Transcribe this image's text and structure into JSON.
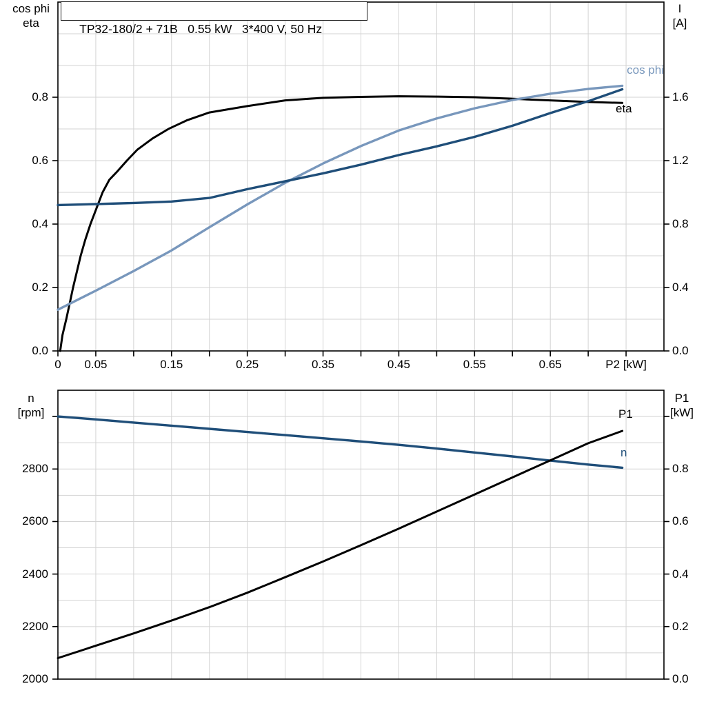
{
  "colors": {
    "black": "#000000",
    "dark_blue": "#1f4e79",
    "light_blue": "#7897bc",
    "grid": "#d3d3d3",
    "frame": "#000000"
  },
  "chart_data": [
    {
      "type": "line",
      "title": "TP32-180/2 + 71B   0.55 kW   3*400 V, 50 Hz",
      "xlabel": "P2 [kW]",
      "x_label_at": 0.75,
      "ylabel_left": [
        "cos phi",
        "eta"
      ],
      "ylabel_right": [
        "I",
        "[A]"
      ],
      "xlim": [
        0,
        0.8
      ],
      "ylim_left": [
        0,
        1.1
      ],
      "ylim_right": [
        0,
        2.2
      ],
      "grid": {
        "x_step": 0.05,
        "y_left_step": 0.1
      },
      "x_ticks": {
        "values": [
          0,
          0.05,
          0.1,
          0.15,
          0.2,
          0.25,
          0.3,
          0.35,
          0.4,
          0.45,
          0.5,
          0.55,
          0.6,
          0.65,
          0.7,
          0.75
        ],
        "labels": [
          "0",
          "0.05",
          "",
          "0.15",
          "",
          "0.25",
          "",
          "0.35",
          "",
          "0.45",
          "",
          "0.55",
          "",
          "0.65",
          "",
          ""
        ]
      },
      "y_ticks_left": {
        "values": [
          0,
          0.2,
          0.4,
          0.6,
          0.8
        ],
        "labels": [
          "0.0",
          "0.2",
          "0.4",
          "0.6",
          "0.8"
        ]
      },
      "y_ticks_right": {
        "values": [
          0,
          0.4,
          0.8,
          1.2,
          1.6
        ],
        "labels": [
          "0.0",
          "0.4",
          "0.8",
          "1.2",
          "1.6"
        ]
      },
      "legend_position": "inline-right",
      "series": [
        {
          "name": "eta",
          "label": "eta",
          "axis": "left",
          "color": "#000000",
          "width": 3,
          "x": [
            0.003,
            0.006,
            0.011,
            0.016,
            0.02,
            0.025,
            0.03,
            0.036,
            0.043,
            0.051,
            0.059,
            0.068,
            0.078,
            0.091,
            0.105,
            0.125,
            0.146,
            0.17,
            0.2,
            0.25,
            0.3,
            0.35,
            0.4,
            0.45,
            0.5,
            0.55,
            0.6,
            0.65,
            0.7,
            0.745
          ],
          "y": [
            0.0,
            0.05,
            0.1,
            0.155,
            0.2,
            0.25,
            0.3,
            0.35,
            0.4,
            0.45,
            0.5,
            0.54,
            0.565,
            0.6,
            0.635,
            0.67,
            0.7,
            0.727,
            0.752,
            0.772,
            0.79,
            0.798,
            0.801,
            0.803,
            0.802,
            0.8,
            0.795,
            0.79,
            0.785,
            0.782
          ]
        },
        {
          "name": "cos phi",
          "label": "cos phi",
          "axis": "left",
          "color": "#7897bc",
          "width": 3.4,
          "x": [
            0,
            0.05,
            0.1,
            0.15,
            0.2,
            0.25,
            0.3,
            0.35,
            0.4,
            0.45,
            0.5,
            0.55,
            0.6,
            0.65,
            0.7,
            0.745
          ],
          "y": [
            0.13,
            0.19,
            0.252,
            0.317,
            0.39,
            0.462,
            0.53,
            0.591,
            0.646,
            0.695,
            0.733,
            0.765,
            0.791,
            0.811,
            0.826,
            0.836
          ]
        },
        {
          "name": "I",
          "label": "I",
          "axis": "right",
          "color": "#1f4e79",
          "width": 3.4,
          "x": [
            0,
            0.05,
            0.1,
            0.15,
            0.2,
            0.25,
            0.3,
            0.35,
            0.4,
            0.45,
            0.5,
            0.55,
            0.6,
            0.65,
            0.7,
            0.745
          ],
          "y": [
            0.92,
            0.926,
            0.933,
            0.942,
            0.965,
            1.02,
            1.07,
            1.12,
            1.175,
            1.235,
            1.29,
            1.35,
            1.42,
            1.5,
            1.575,
            1.65
          ]
        }
      ]
    },
    {
      "type": "line",
      "title": "",
      "xlabel": "",
      "ylabel_left": [
        "n",
        "[rpm]"
      ],
      "ylabel_right": [
        "P1",
        "[kW]"
      ],
      "xlim": [
        0,
        0.8
      ],
      "ylim_left": [
        2000,
        3100
      ],
      "ylim_right": [
        0,
        1.1
      ],
      "grid": {
        "x_step": 0.05,
        "y_left_step": 100
      },
      "x_ticks": {
        "values": [],
        "labels": []
      },
      "y_ticks_left": {
        "values": [
          2000,
          2200,
          2400,
          2600,
          2800,
          3000
        ],
        "labels": [
          "2000",
          "2200",
          "2400",
          "2600",
          "2800",
          ""
        ]
      },
      "y_ticks_right": {
        "values": [
          0,
          0.2,
          0.4,
          0.6,
          0.8,
          1.0
        ],
        "labels": [
          "0.0",
          "0.2",
          "0.4",
          "0.6",
          "0.8",
          ""
        ]
      },
      "legend_position": "inline-right",
      "series": [
        {
          "name": "n",
          "label": "n",
          "axis": "left",
          "color": "#1f4e79",
          "width": 3.4,
          "x": [
            0,
            0.05,
            0.1,
            0.15,
            0.2,
            0.25,
            0.3,
            0.35,
            0.4,
            0.45,
            0.5,
            0.55,
            0.6,
            0.65,
            0.7,
            0.745
          ],
          "y": [
            3000,
            2989,
            2977,
            2965,
            2953,
            2941,
            2929,
            2917,
            2905,
            2892,
            2878,
            2863,
            2848,
            2832,
            2817,
            2805
          ]
        },
        {
          "name": "P1",
          "label": "P1",
          "axis": "right",
          "color": "#000000",
          "width": 3,
          "x": [
            0,
            0.05,
            0.1,
            0.15,
            0.2,
            0.25,
            0.3,
            0.35,
            0.4,
            0.45,
            0.5,
            0.55,
            0.6,
            0.65,
            0.7,
            0.745
          ],
          "y": [
            0.08,
            0.127,
            0.174,
            0.223,
            0.274,
            0.329,
            0.388,
            0.448,
            0.51,
            0.573,
            0.638,
            0.703,
            0.768,
            0.833,
            0.898,
            0.945
          ]
        }
      ]
    }
  ]
}
